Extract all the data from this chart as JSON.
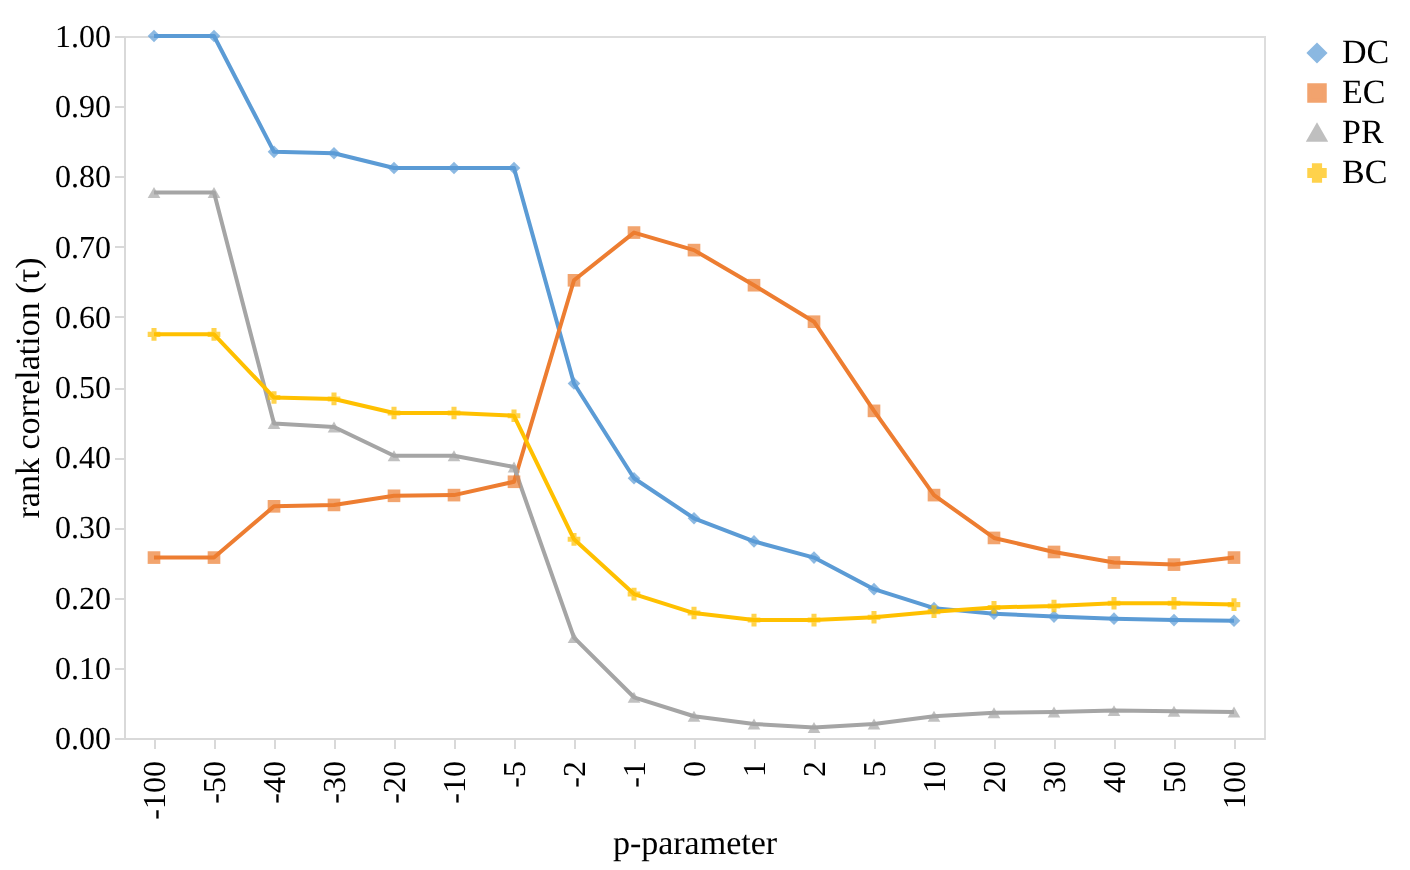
{
  "chart_data": {
    "type": "line",
    "xlabel": "p-parameter",
    "ylabel": "rank correlation (τ)",
    "categories": [
      "-100",
      "-50",
      "-40",
      "-30",
      "-20",
      "-10",
      "-5",
      "-2",
      "-1",
      "0",
      "1",
      "2",
      "5",
      "10",
      "20",
      "30",
      "40",
      "50",
      "100"
    ],
    "series": [
      {
        "name": "DC",
        "color": "#5b9bd5",
        "marker": "diamond",
        "values": [
          1.0,
          1.0,
          0.835,
          0.833,
          0.812,
          0.812,
          0.812,
          0.505,
          0.37,
          0.313,
          0.28,
          0.257,
          0.212,
          0.185,
          0.177,
          0.173,
          0.17,
          0.168,
          0.167
        ]
      },
      {
        "name": "EC",
        "color": "#ed7d31",
        "marker": "square",
        "values": [
          0.257,
          0.257,
          0.33,
          0.332,
          0.345,
          0.346,
          0.365,
          0.652,
          0.72,
          0.695,
          0.645,
          0.593,
          0.466,
          0.346,
          0.285,
          0.265,
          0.25,
          0.247,
          0.257
        ]
      },
      {
        "name": "PR",
        "color": "#a5a5a5",
        "marker": "triangle",
        "values": [
          0.777,
          0.777,
          0.448,
          0.443,
          0.402,
          0.402,
          0.386,
          0.143,
          0.058,
          0.031,
          0.02,
          0.015,
          0.02,
          0.031,
          0.036,
          0.037,
          0.039,
          0.038,
          0.037
        ]
      },
      {
        "name": "BC",
        "color": "#ffc000",
        "marker": "cross",
        "values": [
          0.575,
          0.575,
          0.485,
          0.483,
          0.463,
          0.463,
          0.459,
          0.283,
          0.205,
          0.178,
          0.168,
          0.168,
          0.172,
          0.18,
          0.186,
          0.188,
          0.192,
          0.192,
          0.19
        ]
      }
    ],
    "ylim": [
      0,
      1
    ],
    "yticks": [
      {
        "value": 0,
        "label": "0.00"
      },
      {
        "value": 0.1,
        "label": "0.10"
      },
      {
        "value": 0.2,
        "label": "0.20"
      },
      {
        "value": 0.3,
        "label": "0.30"
      },
      {
        "value": 0.4,
        "label": "0.40"
      },
      {
        "value": 0.5,
        "label": "0.50"
      },
      {
        "value": 0.6,
        "label": "0.60"
      },
      {
        "value": 0.7,
        "label": "0.70"
      },
      {
        "value": 0.8,
        "label": "0.80"
      },
      {
        "value": 0.9,
        "label": "0.90"
      },
      {
        "value": 1,
        "label": "1.00"
      }
    ],
    "grid": false,
    "legend": "right",
    "line_style": "solid"
  }
}
